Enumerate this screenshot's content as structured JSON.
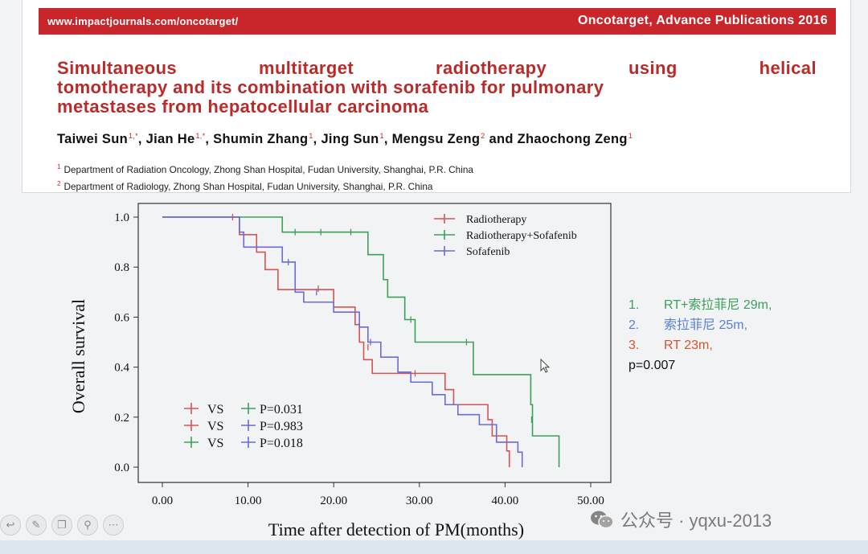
{
  "paper": {
    "banner": {
      "url": "www.impactjournals.com/oncotarget/",
      "journal": "Oncotarget, Advance Publications 2016",
      "color": "#c9262c"
    },
    "title_words_line1": [
      "Simultaneous",
      "multitarget",
      "radiotherapy",
      "using",
      "helical"
    ],
    "title_line2": "tomotherapy and its combination with sorafenib for pulmonary",
    "title_line3": "metastases from hepatocellular carcinoma",
    "authors": [
      {
        "name": "Taiwei Sun",
        "sup": "1,*"
      },
      {
        "name": "Jian He",
        "sup": "1,*"
      },
      {
        "name": "Shumin Zhang",
        "sup": "1"
      },
      {
        "name": "Jing Sun",
        "sup": "1"
      },
      {
        "name": "Mengsu Zeng",
        "sup": "2"
      },
      {
        "name": "Zhaochong Zeng",
        "sup": "1"
      }
    ],
    "author_and": "and",
    "affiliations": [
      {
        "num": "1",
        "text": "Department of Radiation Oncology, Zhong Shan Hospital, Fudan University, Shanghai, P.R. China"
      },
      {
        "num": "2",
        "text": "Department of Radiology, Zhong Shan Hospital, Fudan University, Shanghai, P.R. China"
      }
    ]
  },
  "chart_data": {
    "type": "line",
    "subtype": "kaplan-meier",
    "title": "",
    "xlabel": "Time after detection of PM(months)",
    "ylabel": "Overall survival",
    "xlim": [
      0,
      50
    ],
    "ylim": [
      0,
      1
    ],
    "xticks": [
      "0.00",
      "10.00",
      "20.00",
      "30.00",
      "40.00",
      "50.00"
    ],
    "yticks": [
      "0.0",
      "0.2",
      "0.4",
      "0.6",
      "0.8",
      "1.0"
    ],
    "legend_position": "top-right",
    "series": [
      {
        "name": "Radiotherapy",
        "color": "#d45454",
        "steps": [
          [
            0,
            1.0
          ],
          [
            9,
            0.93
          ],
          [
            11,
            0.86
          ],
          [
            12,
            0.79
          ],
          [
            13.5,
            0.71
          ],
          [
            20,
            0.64
          ],
          [
            22.5,
            0.57
          ],
          [
            23,
            0.5
          ],
          [
            23.5,
            0.43
          ],
          [
            24.5,
            0.375
          ],
          [
            33,
            0.31
          ],
          [
            34,
            0.25
          ],
          [
            38,
            0.19
          ],
          [
            38.5,
            0.125
          ],
          [
            40.2,
            0.065
          ],
          [
            40.5,
            0.0
          ]
        ],
        "end": 40.5,
        "censored": [
          [
            8.2,
            1.0
          ],
          [
            18.2,
            0.714
          ],
          [
            24,
            0.48
          ],
          [
            29.5,
            0.375
          ]
        ]
      },
      {
        "name": "Radiotherapy+Sofafenib",
        "color": "#3ca05a",
        "steps": [
          [
            0,
            1.0
          ],
          [
            14,
            0.94
          ],
          [
            24,
            0.85
          ],
          [
            25.8,
            0.75
          ],
          [
            26.3,
            0.68
          ],
          [
            28.3,
            0.59
          ],
          [
            29.5,
            0.5
          ],
          [
            36.3,
            0.37
          ],
          [
            43,
            0.25
          ],
          [
            43.2,
            0.125
          ],
          [
            46.3,
            0.0
          ]
        ],
        "end": 46.3,
        "censored": [
          [
            15.5,
            0.94
          ],
          [
            18.5,
            0.94
          ],
          [
            22,
            0.94
          ],
          [
            29,
            0.59
          ],
          [
            35.5,
            0.5
          ],
          [
            43.1,
            0.19
          ]
        ]
      },
      {
        "name": "Sofafenib",
        "color": "#6b6bd6",
        "steps": [
          [
            0,
            1.0
          ],
          [
            9,
            0.94
          ],
          [
            9.5,
            0.88
          ],
          [
            14,
            0.82
          ],
          [
            15.5,
            0.7
          ],
          [
            16.5,
            0.66
          ],
          [
            20,
            0.62
          ],
          [
            23,
            0.56
          ],
          [
            24,
            0.5
          ],
          [
            25.5,
            0.44
          ],
          [
            27.5,
            0.38
          ],
          [
            29,
            0.34
          ],
          [
            31.5,
            0.29
          ],
          [
            33,
            0.25
          ],
          [
            34.5,
            0.21
          ],
          [
            37,
            0.17
          ],
          [
            39,
            0.1
          ],
          [
            41.5,
            0.06
          ],
          [
            42,
            0.0
          ]
        ],
        "end": 42,
        "censored": [
          [
            14.7,
            0.82
          ],
          [
            18,
            0.7
          ],
          [
            24.3,
            0.5
          ]
        ]
      }
    ],
    "comparisons": [
      {
        "left_color": "#d45454",
        "vs": "VS",
        "right_color": "#3ca05a",
        "p": "P=0.031"
      },
      {
        "left_color": "#d45454",
        "vs": "VS",
        "right_color": "#6b6bd6",
        "p": "P=0.983"
      },
      {
        "left_color": "#3ca05a",
        "vs": "VS",
        "right_color": "#6b6bd6",
        "p": "P=0.018"
      }
    ]
  },
  "summary": {
    "items": [
      {
        "num": "1.",
        "text": "RT+索拉菲尼 29m,",
        "color": "#3ca05a"
      },
      {
        "num": "2.",
        "text": "索拉菲尼 25m,",
        "color": "#5a7fd6"
      },
      {
        "num": "3.",
        "text": "RT 23m,",
        "color": "#d9532c"
      }
    ],
    "p_value": "p=0.007"
  },
  "watermark": {
    "text": "公众号 · yqxu-2013",
    "icon": "wechat-icon"
  },
  "toolbar": {
    "icons": [
      "back-icon",
      "pen-icon",
      "copy-icon",
      "zoom-icon",
      "more-icon"
    ]
  }
}
